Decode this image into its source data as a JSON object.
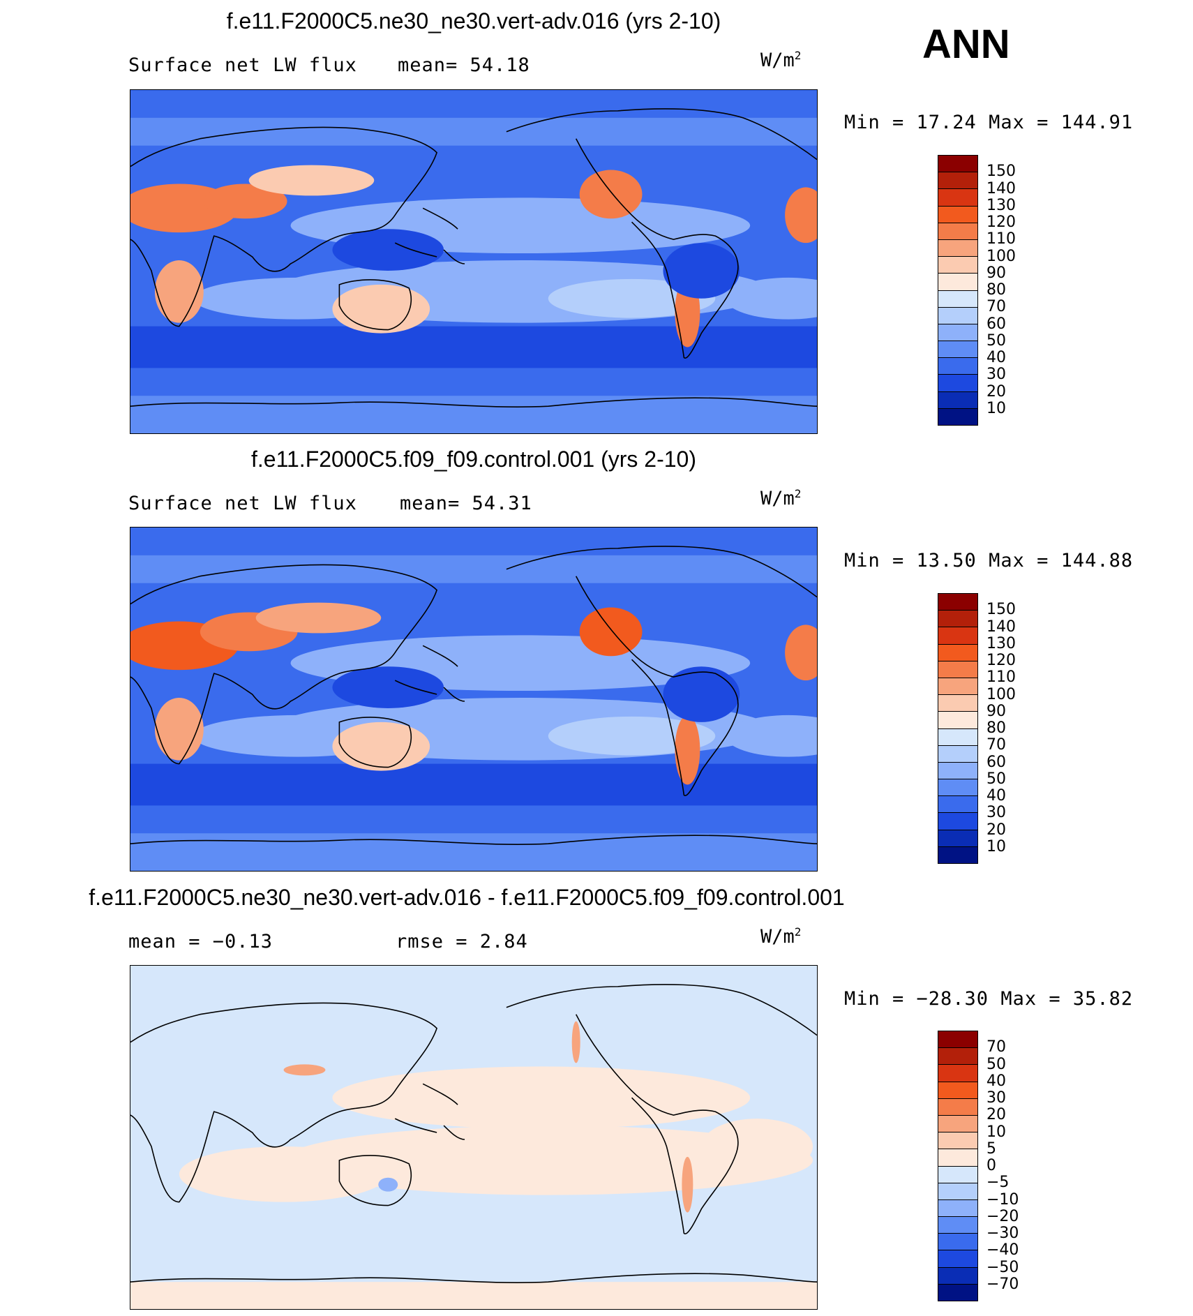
{
  "season": "ANN",
  "panels": [
    {
      "id": "test",
      "title": "f.e11.F2000C5.ne30_ne30.vert-adv.016 (yrs 2-10)",
      "left_label": "Surface net LW flux",
      "mid_label": "mean=  54.18",
      "units": "W/m",
      "units_sup": "2",
      "minmax": "Min =   17.24 Max = 144.91",
      "colorbar_ticks": [
        "150",
        "140",
        "130",
        "120",
        "110",
        "100",
        "90",
        "80",
        "70",
        "60",
        "50",
        "40",
        "30",
        "20",
        "10"
      ],
      "colors": [
        "#8b0000",
        "#b3200a",
        "#d93512",
        "#f25a1e",
        "#f47c49",
        "#f7a47d",
        "#fbcbb1",
        "#fde9dc",
        "#d6e7fb",
        "#b4cffb",
        "#8eb1fa",
        "#5f8df5",
        "#3a6bed",
        "#1d49e0",
        "#0a2db5",
        "#001284"
      ]
    },
    {
      "id": "control",
      "title": "f.e11.F2000C5.f09_f09.control.001 (yrs 2-10)",
      "left_label": "Surface net LW flux",
      "mid_label": "mean=  54.31",
      "units": "W/m",
      "units_sup": "2",
      "minmax": "Min =   13.50 Max = 144.88",
      "colorbar_ticks": [
        "150",
        "140",
        "130",
        "120",
        "110",
        "100",
        "90",
        "80",
        "70",
        "60",
        "50",
        "40",
        "30",
        "20",
        "10"
      ],
      "colors": [
        "#8b0000",
        "#b3200a",
        "#d93512",
        "#f25a1e",
        "#f47c49",
        "#f7a47d",
        "#fbcbb1",
        "#fde9dc",
        "#d6e7fb",
        "#b4cffb",
        "#8eb1fa",
        "#5f8df5",
        "#3a6bed",
        "#1d49e0",
        "#0a2db5",
        "#001284"
      ]
    },
    {
      "id": "diff",
      "title": "f.e11.F2000C5.ne30_ne30.vert-adv.016 - f.e11.F2000C5.f09_f09.control.001",
      "left_label": "mean =  −0.13",
      "mid_label": "rmse =   2.84",
      "units": "W/m",
      "units_sup": "2",
      "minmax": "Min = −28.30 Max =  35.82",
      "colorbar_ticks": [
        "70",
        "50",
        "40",
        "30",
        "20",
        "10",
        "5",
        "0",
        "−5",
        "−10",
        "−20",
        "−30",
        "−40",
        "−50",
        "−70"
      ],
      "colors": [
        "#8b0000",
        "#b3200a",
        "#d93512",
        "#f25a1e",
        "#f47c49",
        "#f7a47d",
        "#fbcbb1",
        "#fde9dc",
        "#d6e7fb",
        "#b4cffb",
        "#8eb1fa",
        "#5f8df5",
        "#3a6bed",
        "#1d49e0",
        "#0a2db5",
        "#001284"
      ]
    }
  ]
}
